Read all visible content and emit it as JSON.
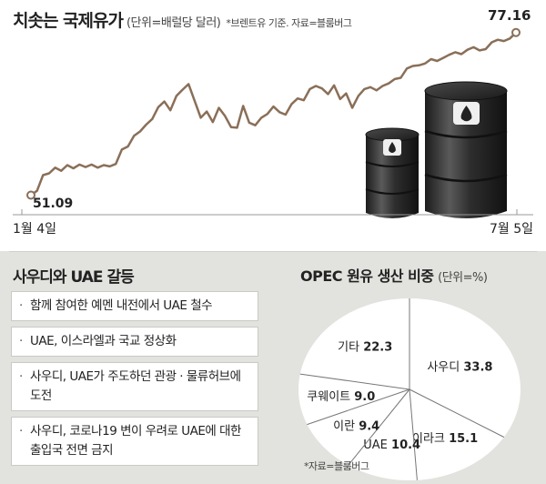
{
  "header": {
    "title": "치솟는 국제유가",
    "unit": "(단위=배럴당 달러)",
    "source": "*브렌트유 기준. 자료=블룸버그"
  },
  "colors": {
    "line": "#8a6f58",
    "bottom_bg": "#e2e3de",
    "pie_fill": "#ffffff"
  },
  "chart_data": [
    {
      "type": "line",
      "title": "치솟는 국제유가",
      "unit": "(단위=배럴당 달러)",
      "note": "*브렌트유 기준. 자료=블룸버그",
      "x_start_label": "1월 4일",
      "x_end_label": "7월 5일",
      "start_value_label": "51.09",
      "end_value_label": "77.16",
      "y_min": 50,
      "y_max": 78,
      "series": [
        {
          "values": [
            51.09,
            51.8,
            54.3,
            54.6,
            55.5,
            55.0,
            55.9,
            55.4,
            56.0,
            55.6,
            56.0,
            55.5,
            55.9,
            55.7,
            56.1,
            58.4,
            58.9,
            60.6,
            61.3,
            62.4,
            63.3,
            65.2,
            66.1,
            64.7,
            67.0,
            68.0,
            68.9,
            66.2,
            63.5,
            64.5,
            62.8,
            65.1,
            63.8,
            62.0,
            61.9,
            65.4,
            62.7,
            62.3,
            63.5,
            64.1,
            65.3,
            64.4,
            64.0,
            65.7,
            66.6,
            66.3,
            68.1,
            68.6,
            68.2,
            67.3,
            68.7,
            66.5,
            67.4,
            65.1,
            67.0,
            68.1,
            68.4,
            67.9,
            68.6,
            69.0,
            69.7,
            69.9,
            71.4,
            71.8,
            71.9,
            72.2,
            72.9,
            72.6,
            73.1,
            73.6,
            74.0,
            73.7,
            74.4,
            74.8,
            74.3,
            74.5,
            75.6,
            76.0,
            75.8,
            76.2,
            77.16
          ]
        }
      ]
    },
    {
      "type": "pie",
      "title": "OPEC 원유 생산 비중",
      "unit": "(단위=%)",
      "source": "*자료=블룸버그",
      "slices": [
        {
          "label": "사우디",
          "value": 33.8
        },
        {
          "label": "이라크",
          "value": 15.1
        },
        {
          "label": "UAE",
          "value": 10.4
        },
        {
          "label": "이란",
          "value": 9.4
        },
        {
          "label": "쿠웨이트",
          "value": 9.0
        },
        {
          "label": "기타",
          "value": 22.3
        }
      ]
    }
  ],
  "conflict": {
    "title": "사우디와 UAE 갈등",
    "bullet_marker": "·",
    "items": [
      "함께 참여한 예멘 내전에서 UAE 철수",
      "UAE, 이스라엘과 국교 정상화",
      "사우디, UAE가 주도하던 관광 · 물류허브에 도전",
      "사우디, 코로나19 변이 우려로 UAE에 대한 출입국 전면 금지"
    ]
  }
}
